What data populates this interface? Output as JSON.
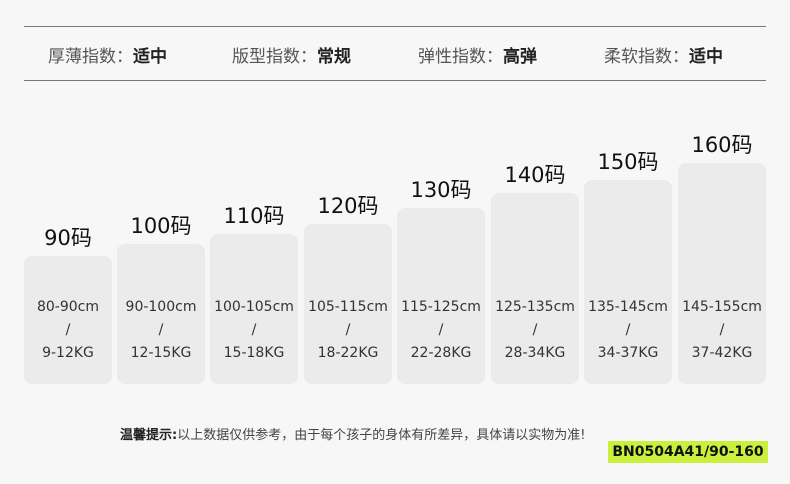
{
  "attributes": [
    {
      "label": "厚薄指数：",
      "value": "适中"
    },
    {
      "label": "版型指数：",
      "value": "常规"
    },
    {
      "label": "弹性指数：",
      "value": "高弹"
    },
    {
      "label": "柔软指数：",
      "value": "适中"
    }
  ],
  "sizes": [
    {
      "size": "90码",
      "height": "80-90cm",
      "sep": "/",
      "weight": "9-12KG"
    },
    {
      "size": "100码",
      "height": "90-100cm",
      "sep": "/",
      "weight": "12-15KG"
    },
    {
      "size": "110码",
      "height": "100-105cm",
      "sep": "/",
      "weight": "15-18KG"
    },
    {
      "size": "120码",
      "height": "105-115cm",
      "sep": "/",
      "weight": "18-22KG"
    },
    {
      "size": "130码",
      "height": "115-125cm",
      "sep": "/",
      "weight": "22-28KG"
    },
    {
      "size": "140码",
      "height": "125-135cm",
      "sep": "/",
      "weight": "28-34KG"
    },
    {
      "size": "150码",
      "height": "135-145cm",
      "sep": "/",
      "weight": "34-37KG"
    },
    {
      "size": "160码",
      "height": "145-155cm",
      "sep": "/",
      "weight": "37-42KG"
    }
  ],
  "tip": {
    "label": "温馨提示:",
    "text": "以上数据仅供参考，由于每个孩子的身体有所差异，具体请以实物为准!"
  },
  "product_code": "BN0504A41/90-160",
  "colors": {
    "card": "#ebebeb",
    "code_bg": "#c8f03c"
  }
}
